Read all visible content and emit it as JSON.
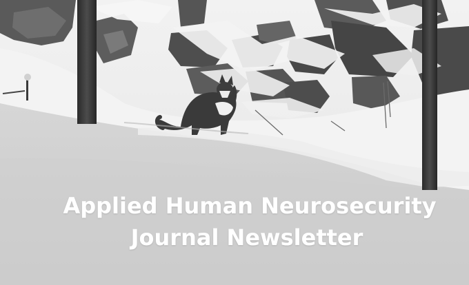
{
  "banner": {
    "title_line_1": "Applied Human Neurosecurity",
    "title_line_2": "Journal Newsletter"
  },
  "colors": {
    "title_text": "#ffffff",
    "snow_light": "#f4f4f4",
    "snow_shadow": "#c9c9c9",
    "rock_dark": "#4a4a4a",
    "post_dark": "#2e2e2e"
  },
  "photo": {
    "subject_icon": "cat-icon"
  }
}
